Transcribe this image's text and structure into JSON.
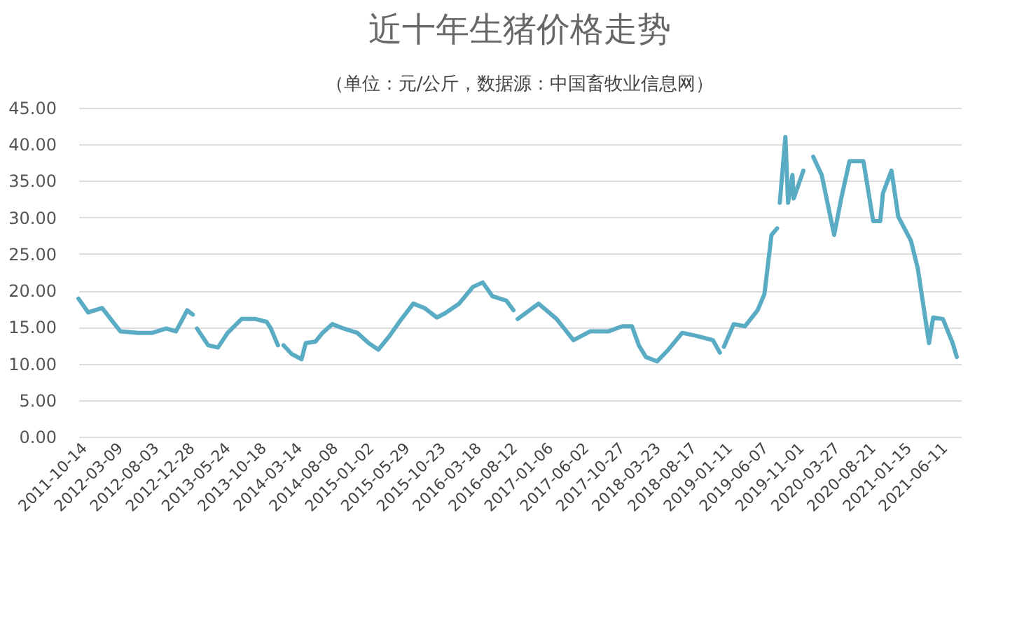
{
  "chart_data": {
    "type": "line",
    "title": "近十年生猪价格走势",
    "subtitle": "（单位：元/公斤，数据源：中国畜牧业信息网）",
    "x": [
      "2011-10-14",
      "2011-11-23",
      "2012-01-19",
      "2012-04-03",
      "2012-06-16",
      "2012-08-12",
      "2012-10-08",
      "2012-11-17",
      "2013-01-02",
      "2013-01-25",
      "2013-02-03",
      "2013-02-11",
      "2013-03-29",
      "2013-05-08",
      "2013-06-17",
      "2013-08-13",
      "2013-10-09",
      "2013-11-24",
      "2013-12-11",
      "2014-01-09",
      "2014-01-20",
      "2014-02-01",
      "2014-03-07",
      "2014-04-16",
      "2014-05-03",
      "2014-06-12",
      "2014-07-11",
      "2014-08-20",
      "2014-10-05",
      "2014-12-01",
      "2015-01-16",
      "2015-02-25",
      "2015-04-12",
      "2015-05-22",
      "2015-07-18",
      "2015-09-02",
      "2015-10-23",
      "2015-11-26",
      "2016-01-22",
      "2016-03-19",
      "2016-04-28",
      "2016-06-07",
      "2016-08-03",
      "2016-09-01",
      "2016-09-10",
      "2016-09-18",
      "2016-12-13",
      "2017-02-25",
      "2017-05-05",
      "2017-07-12",
      "2017-09-25",
      "2017-11-21",
      "2017-12-31",
      "2018-01-28",
      "2018-02-26",
      "2018-04-13",
      "2018-05-29",
      "2018-07-25",
      "2018-09-20",
      "2018-11-28",
      "2018-12-26",
      "2019-01-04",
      "2019-01-12",
      "2019-02-21",
      "2019-04-08",
      "2019-05-30",
      "2019-06-27",
      "2019-07-26",
      "2019-08-18",
      "2019-08-24",
      "2019-08-29",
      "2019-09-21",
      "2019-10-02",
      "2019-10-20",
      "2019-10-25",
      "2019-12-04",
      "2019-12-24",
      "2020-01-13",
      "2020-02-17",
      "2020-04-08",
      "2020-05-07",
      "2020-06-10",
      "2020-08-06",
      "2020-09-15",
      "2020-10-14",
      "2020-10-25",
      "2020-11-29",
      "2020-12-27",
      "2021-02-17",
      "2021-03-17",
      "2021-05-02",
      "2021-05-19",
      "2021-06-28",
      "2021-08-07",
      "2021-08-24"
    ],
    "series": [
      {
        "color": "#5aacc4",
        "values": [
          18.9,
          17.0,
          17.6,
          14.4,
          14.2,
          14.2,
          14.8,
          14.4,
          17.3,
          16.7,
          null,
          14.8,
          12.5,
          12.2,
          14.2,
          16.1,
          16.1,
          15.7,
          14.8,
          12.5,
          null,
          12.5,
          11.3,
          10.6,
          12.8,
          13.0,
          14.2,
          15.4,
          14.8,
          14.2,
          12.8,
          11.9,
          13.8,
          15.7,
          18.2,
          17.6,
          16.3,
          16.9,
          18.2,
          20.5,
          21.1,
          19.2,
          18.6,
          17.3,
          null,
          16.1,
          18.2,
          16.1,
          13.2,
          14.4,
          14.4,
          15.1,
          15.1,
          12.5,
          10.9,
          10.3,
          11.9,
          14.2,
          13.8,
          13.2,
          11.5,
          null,
          12.3,
          15.4,
          15.1,
          17.3,
          19.5,
          27.6,
          28.5,
          null,
          32.0,
          41.0,
          32.0,
          35.8,
          32.6,
          36.4,
          null,
          38.3,
          35.8,
          27.6,
          32.6,
          37.7,
          37.7,
          29.5,
          29.5,
          33.3,
          36.4,
          30.1,
          26.8,
          23.0,
          12.8,
          16.3,
          16.1,
          12.8,
          10.9
        ]
      }
    ],
    "xlim": [
      "2011-10-14",
      "2021-09-10"
    ],
    "xticks": [
      "2011-10-14",
      "2012-03-09",
      "2012-08-03",
      "2012-12-28",
      "2013-05-24",
      "2013-10-18",
      "2014-03-14",
      "2014-08-08",
      "2015-01-02",
      "2015-05-29",
      "2015-10-23",
      "2016-03-18",
      "2016-08-12",
      "2017-01-06",
      "2017-06-02",
      "2017-10-27",
      "2018-03-23",
      "2018-08-17",
      "2019-01-11",
      "2019-06-07",
      "2019-11-01",
      "2020-03-27",
      "2020-08-21",
      "2021-01-15",
      "2021-06-11"
    ],
    "ylim": [
      0,
      45
    ],
    "yticks": [
      {
        "value": 0,
        "label": "0.00"
      },
      {
        "value": 5,
        "label": "5.00"
      },
      {
        "value": 10,
        "label": "10.00"
      },
      {
        "value": 15,
        "label": "15.00"
      },
      {
        "value": 20,
        "label": "20.00"
      },
      {
        "value": 25,
        "label": "25.00"
      },
      {
        "value": 30,
        "label": "30.00"
      },
      {
        "value": 35,
        "label": "35.00"
      },
      {
        "value": 40,
        "label": "40.00"
      },
      {
        "value": 45,
        "label": "45.00"
      }
    ],
    "grid": "y",
    "line_style": "solid",
    "marker": "none"
  }
}
